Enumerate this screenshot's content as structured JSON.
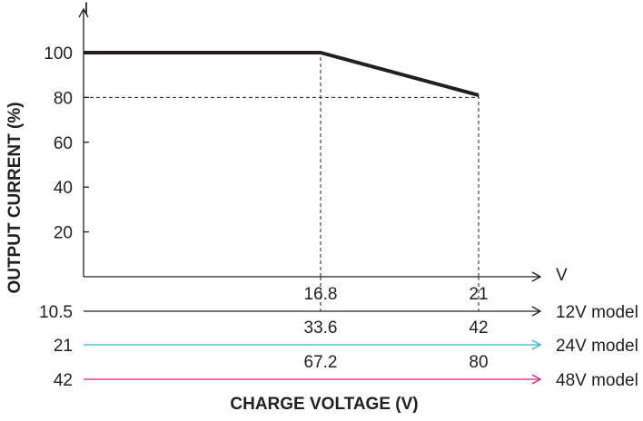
{
  "chart_data": {
    "type": "line",
    "ylabel": "OUTPUT CURRENT (%)",
    "y_axis_symbol": "I",
    "xlabel": "CHARGE VOLTAGE (V)",
    "x_axis_symbol": "V",
    "y_ticks": [
      "100",
      "80",
      "60",
      "40",
      "20"
    ],
    "ylim": [
      0,
      100
    ],
    "series": [
      {
        "x": [
          10.5,
          16.8,
          21
        ],
        "y": [
          100,
          100,
          81
        ]
      }
    ],
    "reference_lines": [
      {
        "type": "horizontal",
        "y": 80,
        "x_end": 21
      },
      {
        "type": "vertical",
        "x": 16.8
      },
      {
        "type": "vertical",
        "x": 21
      }
    ],
    "model_axes": [
      {
        "name": "12V model",
        "start": "10.5",
        "ticks": [
          "16.8",
          "21"
        ],
        "color": "#231f20"
      },
      {
        "name": "24V model",
        "start": "21",
        "ticks": [
          "33.6",
          "42"
        ],
        "color": "#29b6d8"
      },
      {
        "name": "48V model",
        "start": "42",
        "ticks": [
          "67.2",
          "80"
        ],
        "color": "#e0218a"
      }
    ],
    "colors": {
      "axis": "#231f20",
      "line": "#231f20"
    }
  }
}
